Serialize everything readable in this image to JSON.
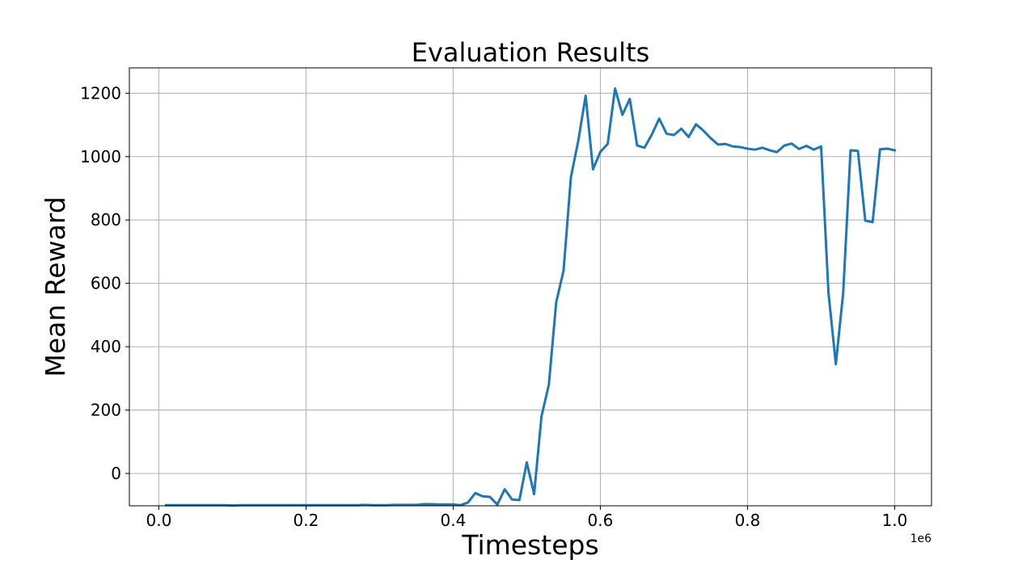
{
  "chart_data": {
    "type": "line",
    "title": "Evaluation Results",
    "xlabel": "Timesteps",
    "ylabel": "Mean Reward",
    "x_offset_label": "1e6",
    "xlim": [
      -40000,
      1050000
    ],
    "ylim": [
      -102,
      1280
    ],
    "x_ticks": [
      0.0,
      0.2,
      0.4,
      0.6,
      0.8,
      1.0
    ],
    "x_tick_labels": [
      "0.0",
      "0.2",
      "0.4",
      "0.6",
      "0.8",
      "1.0"
    ],
    "y_ticks": [
      0,
      200,
      400,
      600,
      800,
      1000,
      1200
    ],
    "y_tick_labels": [
      "0",
      "200",
      "400",
      "600",
      "800",
      "1000",
      "1200"
    ],
    "grid": true,
    "line_color": "#1f77b4",
    "series": [
      {
        "x": [
          10000,
          20000,
          30000,
          40000,
          50000,
          60000,
          70000,
          80000,
          90000,
          100000,
          110000,
          120000,
          130000,
          140000,
          150000,
          160000,
          170000,
          180000,
          190000,
          200000,
          210000,
          220000,
          230000,
          240000,
          250000,
          260000,
          270000,
          280000,
          290000,
          300000,
          310000,
          320000,
          330000,
          340000,
          350000,
          360000,
          370000,
          380000,
          390000,
          400000,
          410000,
          420000,
          430000,
          440000,
          450000,
          460000,
          470000,
          480000,
          490000,
          500000,
          510000,
          520000,
          530000,
          540000,
          550000,
          560000,
          570000,
          580000,
          590000,
          600000,
          610000,
          620000,
          630000,
          640000,
          650000,
          660000,
          670000,
          680000,
          690000,
          700000,
          710000,
          720000,
          730000,
          740000,
          750000,
          760000,
          770000,
          780000,
          790000,
          800000,
          810000,
          820000,
          830000,
          840000,
          850000,
          860000,
          870000,
          880000,
          890000,
          900000,
          910000,
          920000,
          930000,
          940000,
          950000,
          960000,
          970000,
          980000,
          990000,
          1000000
        ],
        "y": [
          -100,
          -100,
          -100,
          -100,
          -100,
          -100,
          -100,
          -100,
          -100,
          -101,
          -100,
          -100,
          -100,
          -100,
          -100,
          -100,
          -100,
          -100,
          -100,
          -100,
          -100,
          -100,
          -100,
          -100,
          -100,
          -100,
          -100,
          -99,
          -100,
          -100,
          -100,
          -99,
          -99,
          -99,
          -99,
          -97,
          -97,
          -98,
          -98,
          -98,
          -100,
          -92,
          -62,
          -72,
          -74,
          -98,
          -50,
          -82,
          -84,
          35,
          -65,
          180,
          280,
          540,
          640,
          935,
          1050,
          1192,
          960,
          1015,
          1040,
          1215,
          1132,
          1182,
          1035,
          1028,
          1070,
          1120,
          1072,
          1068,
          1088,
          1062,
          1102,
          1082,
          1058,
          1038,
          1040,
          1032,
          1030,
          1025,
          1022,
          1028,
          1020,
          1014,
          1035,
          1041,
          1024,
          1034,
          1022,
          1032,
          570,
          345,
          570,
          1020,
          1018,
          798,
          793,
          1023,
          1025,
          1020
        ]
      }
    ]
  }
}
